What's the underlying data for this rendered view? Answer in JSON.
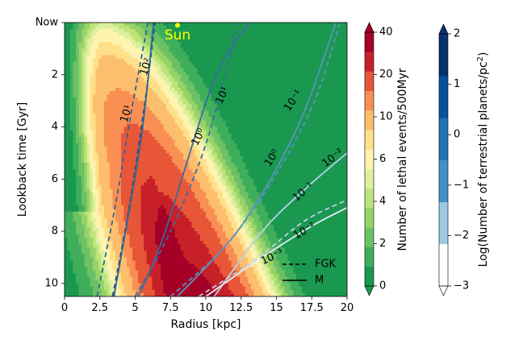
{
  "chart_data": {
    "type": "contour",
    "title": "",
    "xlabel": "Radius [kpc]",
    "ylabel": "Lookback time [Gyr]",
    "xlim": [
      0,
      20
    ],
    "ylim": [
      0,
      10.5
    ],
    "y_inverted": true,
    "x_ticks": [
      "0",
      "2.5",
      "5",
      "7.5",
      "10",
      "12.5",
      "15",
      "17.5",
      "20"
    ],
    "x_tick_values": [
      0,
      2.5,
      5,
      7.5,
      10,
      12.5,
      15,
      17.5,
      20
    ],
    "y_ticks": [
      "Now",
      "2",
      "4",
      "6",
      "8",
      "10"
    ],
    "y_tick_values": [
      0,
      2,
      4,
      6,
      8,
      10
    ],
    "sun": {
      "label": "Sun",
      "x": 8.0,
      "y": 0.1,
      "color": "#ffff00"
    },
    "lethal_events": {
      "label": "Number of lethal events/500Myr",
      "levels": [
        0,
        1,
        2,
        3,
        4,
        5,
        6,
        8,
        10,
        15,
        20,
        30,
        40
      ],
      "cbar_ticks": [
        "0",
        "2",
        "4",
        "6",
        "10",
        "20",
        "40"
      ],
      "colors": [
        "#1a9850",
        "#3fae5b",
        "#6cc164",
        "#96d268",
        "#bde47a",
        "#dcf09e",
        "#fff3b0",
        "#fee08b",
        "#fdbe6d",
        "#f98f53",
        "#e75637",
        "#c72028",
        "#a50026"
      ]
    },
    "terrestrial_planets": {
      "label": "Log(Number of terrestrial planets/pc$^2$)",
      "levels": [
        -3,
        -2,
        -1,
        0,
        1,
        2
      ],
      "cbar_ticks": [
        "−3",
        "−2",
        "−1",
        "0",
        "1",
        "2"
      ],
      "colors": [
        "#ffffff",
        "#9ecae1",
        "#4292c6",
        "#2171b5",
        "#08519c",
        "#08306b"
      ]
    },
    "contour_lines": [
      {
        "level": "10²",
        "star": "FGK",
        "points": [
          [
            3.4,
            10.5
          ],
          [
            4.6,
            7.0
          ],
          [
            5.7,
            3.0
          ],
          [
            6.4,
            0.0
          ]
        ]
      },
      {
        "level": "10¹",
        "star": "FGK",
        "points": [
          [
            2.3,
            10.5
          ],
          [
            3.6,
            7.0
          ],
          [
            4.7,
            3.5
          ],
          [
            5.9,
            0.0
          ]
        ]
      },
      {
        "level": "10⁰",
        "star": "FGK",
        "points": [
          [
            5.0,
            10.5
          ],
          [
            7.5,
            8.0
          ],
          [
            10.1,
            4.5
          ],
          [
            12.3,
            0.0
          ]
        ]
      },
      {
        "level": "10⁻¹",
        "star": "FGK",
        "points": [
          [
            7.5,
            10.5
          ],
          [
            11.5,
            8.5
          ],
          [
            15.0,
            5.8
          ],
          [
            17.7,
            3.0
          ],
          [
            19.5,
            0.0
          ]
        ]
      },
      {
        "level": "10⁻²",
        "star": "FGK",
        "points": [
          [
            9.5,
            10.5
          ],
          [
            13.5,
            9.1
          ],
          [
            17.0,
            7.6
          ],
          [
            20.0,
            6.8
          ]
        ]
      },
      {
        "level": "10¹",
        "star": "M",
        "points": [
          [
            3.5,
            10.5
          ],
          [
            5.4,
            4.5
          ],
          [
            6.3,
            0.0
          ]
        ]
      },
      {
        "level": "10⁰",
        "star": "M",
        "points": [
          [
            5.2,
            10.5
          ],
          [
            7.0,
            8.2
          ],
          [
            10.6,
            2.2
          ],
          [
            13.1,
            0.0
          ]
        ]
      },
      {
        "level": "10⁻¹",
        "star": "M",
        "points": [
          [
            8.0,
            10.5
          ],
          [
            12.5,
            7.8
          ],
          [
            16.5,
            4.0
          ],
          [
            19.2,
            0.0
          ]
        ]
      },
      {
        "level": "10⁻²",
        "star": "M",
        "points": [
          [
            10.6,
            10.5
          ],
          [
            14.0,
            8.0
          ],
          [
            17.0,
            6.4
          ],
          [
            20.0,
            5.0
          ]
        ]
      },
      {
        "level": "10⁻³",
        "star": "M",
        "points": [
          [
            10.0,
            10.5
          ],
          [
            14.0,
            9.0
          ],
          [
            17.5,
            7.8
          ],
          [
            20.0,
            7.1
          ]
        ]
      }
    ],
    "contour_labels": [
      {
        "text": "10²",
        "x": 5.8,
        "y": 1.7,
        "angle": -72
      },
      {
        "text": "10¹",
        "x": 4.4,
        "y": 3.5,
        "angle": -72
      },
      {
        "text": "10¹",
        "x": 11.2,
        "y": 2.8,
        "angle": -65
      },
      {
        "text": "10⁰",
        "x": 9.5,
        "y": 4.4,
        "angle": -62
      },
      {
        "text": "10⁰",
        "x": 14.7,
        "y": 5.2,
        "angle": -57
      },
      {
        "text": "10⁻¹",
        "x": 16.2,
        "y": 3.0,
        "angle": -55
      },
      {
        "text": "10⁻¹",
        "x": 16.9,
        "y": 6.5,
        "angle": -40
      },
      {
        "text": "10⁻²",
        "x": 19.0,
        "y": 5.2,
        "angle": -37
      },
      {
        "text": "10⁻²",
        "x": 17.0,
        "y": 8.0,
        "angle": -30
      },
      {
        "text": "10⁻³",
        "x": 14.7,
        "y": 9.0,
        "angle": -25
      }
    ],
    "legend": {
      "placement": "lower-right",
      "entries": [
        {
          "label": "FGK",
          "style": "dashed"
        },
        {
          "label": "M",
          "style": "solid"
        }
      ]
    }
  }
}
